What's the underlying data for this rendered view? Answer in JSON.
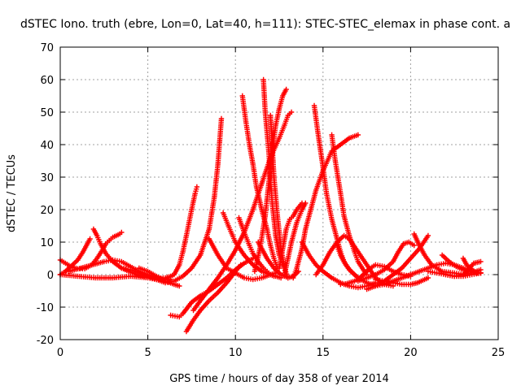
{
  "chart_data": {
    "type": "scatter",
    "title": "dSTEC Iono. truth (ebre, Lon=0, Lat=40, h=111): STEC-STEC_elemax in phase cont. a",
    "xlabel": "GPS time / hours of day 358 of year 2014",
    "ylabel": "dSTEC  / TECUs",
    "xlim": [
      0,
      25
    ],
    "ylim": [
      -20,
      70
    ],
    "xticks": [
      0,
      5,
      10,
      15,
      20,
      25
    ],
    "yticks": [
      -20,
      -10,
      0,
      10,
      20,
      30,
      40,
      50,
      60,
      70
    ],
    "grid": true,
    "marker": "+",
    "color": "#ff0000",
    "series": [
      {
        "x": [
          0.0,
          0.3,
          0.6,
          1.0,
          1.3,
          1.6,
          1.7
        ],
        "y": [
          0.0,
          1.0,
          2.5,
          4.5,
          7.0,
          10.0,
          11.0
        ]
      },
      {
        "x": [
          0.0,
          0.3,
          0.6,
          1.0,
          1.4,
          1.8,
          2.1,
          2.4,
          2.6,
          2.8,
          3.0,
          3.2,
          3.4,
          3.5
        ],
        "y": [
          4.5,
          3.5,
          2.5,
          1.8,
          1.8,
          3.0,
          5.0,
          7.5,
          9.5,
          10.5,
          11.5,
          12.0,
          12.5,
          13.0
        ]
      },
      {
        "x": [
          1.9,
          2.1,
          2.3,
          2.6,
          3.0,
          3.5,
          4.0,
          4.5,
          5.0,
          5.5,
          6.0,
          6.3
        ],
        "y": [
          14.0,
          12.0,
          9.5,
          6.5,
          4.0,
          2.0,
          0.8,
          -0.2,
          -0.8,
          -1.2,
          -1.0,
          -0.5
        ]
      },
      {
        "x": [
          0.0,
          1.0,
          2.0,
          3.0,
          4.0,
          5.0,
          5.5,
          6.0,
          6.5,
          6.8,
          7.0,
          7.2,
          7.5,
          7.7,
          7.8
        ],
        "y": [
          0.0,
          -0.5,
          -1.0,
          -1.0,
          -0.5,
          -1.0,
          -1.5,
          -1.5,
          0.0,
          3.0,
          7.0,
          12.0,
          20.0,
          25.0,
          27.0
        ]
      },
      {
        "x": [
          0.5,
          1.5,
          2.5,
          3.0,
          3.5,
          4.0,
          4.5,
          5.0,
          5.5,
          6.0,
          6.3
        ],
        "y": [
          1.0,
          2.5,
          4.0,
          4.5,
          4.0,
          2.5,
          1.0,
          0.0,
          -1.0,
          -1.5,
          -1.5
        ]
      },
      {
        "x": [
          3.5,
          4.0,
          4.5,
          5.0,
          5.5,
          6.0,
          6.5,
          7.0,
          7.5,
          8.0,
          8.5,
          8.8,
          9.0,
          9.2
        ],
        "y": [
          2.0,
          1.5,
          0.5,
          -0.5,
          -1.5,
          -2.5,
          -2.0,
          -0.5,
          2.0,
          6.0,
          14.0,
          24.0,
          34.0,
          48.0
        ]
      },
      {
        "x": [
          4.5,
          5.0,
          5.5,
          6.0,
          6.5,
          6.8
        ],
        "y": [
          2.0,
          1.0,
          -0.5,
          -2.0,
          -3.0,
          -3.5
        ]
      },
      {
        "x": [
          6.3,
          6.8,
          7.0,
          7.5,
          8.0,
          8.5,
          9.0,
          9.5,
          10.0,
          10.5,
          11.0
        ],
        "y": [
          -12.5,
          -13.0,
          -12.0,
          -8.5,
          -6.5,
          -5.0,
          -3.0,
          -1.0,
          1.5,
          3.5,
          5.0
        ]
      },
      {
        "x": [
          7.2,
          7.6,
          8.0,
          8.5,
          9.0,
          9.5,
          10.0,
          10.3
        ],
        "y": [
          -17.5,
          -14.0,
          -11.0,
          -8.0,
          -5.5,
          -2.5,
          1.0,
          3.0
        ]
      },
      {
        "x": [
          7.6,
          8.0,
          8.5,
          9.0,
          9.5,
          10.0,
          10.5,
          11.0,
          11.5,
          12.0,
          12.5,
          12.8,
          13.0,
          13.2
        ],
        "y": [
          -11.0,
          -8.0,
          -4.5,
          -1.0,
          3.0,
          7.5,
          13.0,
          20.0,
          28.0,
          36.0,
          42.0,
          46.0,
          49.0,
          50.0
        ]
      },
      {
        "x": [
          9.3,
          9.6,
          10.0,
          10.5,
          11.0,
          11.5,
          12.0,
          12.3,
          12.6
        ],
        "y": [
          19.0,
          15.0,
          10.0,
          6.0,
          3.0,
          1.0,
          0.0,
          -0.5,
          -1.0
        ]
      },
      {
        "x": [
          8.5,
          9.0,
          9.5,
          10.0,
          10.5,
          11.0,
          11.5,
          12.0,
          12.3
        ],
        "y": [
          11.0,
          6.0,
          2.0,
          0.5,
          -1.0,
          -1.5,
          -1.0,
          0.0,
          0.5
        ]
      },
      {
        "x": [
          10.4,
          10.6,
          10.8,
          11.0,
          11.2,
          11.5,
          11.8,
          12.0,
          12.2,
          12.4
        ],
        "y": [
          55.0,
          47.0,
          40.0,
          34.0,
          27.0,
          20.0,
          14.0,
          9.0,
          5.0,
          2.0
        ]
      },
      {
        "x": [
          10.2,
          10.5,
          10.8,
          11.0,
          11.3,
          11.6,
          11.8,
          12.0,
          12.2
        ],
        "y": [
          17.5,
          13.0,
          9.0,
          6.5,
          4.0,
          2.0,
          1.0,
          0.0,
          -0.5
        ]
      },
      {
        "x": [
          11.1,
          11.4,
          11.7,
          11.9,
          12.1,
          12.3,
          12.5,
          12.7,
          12.9
        ],
        "y": [
          1.0,
          8.0,
          18.0,
          28.0,
          38.0,
          46.0,
          51.0,
          55.0,
          57.0
        ]
      },
      {
        "x": [
          11.6,
          11.7,
          11.9,
          12.0,
          12.1,
          12.3,
          12.5,
          12.7
        ],
        "y": [
          60.0,
          50.0,
          38.0,
          30.0,
          22.0,
          12.0,
          6.0,
          3.0
        ]
      },
      {
        "x": [
          12.5,
          12.7,
          12.9,
          13.1,
          13.3,
          13.5,
          13.8
        ],
        "y": [
          2.0,
          8.0,
          14.0,
          17.0,
          18.0,
          20.0,
          22.0
        ]
      },
      {
        "x": [
          12.0,
          12.1,
          12.2,
          12.4,
          12.6,
          12.8,
          13.0
        ],
        "y": [
          49.0,
          40.0,
          30.0,
          18.0,
          8.0,
          2.0,
          -1.0
        ]
      },
      {
        "x": [
          11.3,
          11.8,
          12.2,
          12.6,
          13.0,
          13.3,
          13.6
        ],
        "y": [
          10.0,
          5.0,
          2.0,
          0.0,
          -1.0,
          -0.5,
          1.0
        ]
      },
      {
        "x": [
          12.8,
          13.0,
          13.2,
          13.5,
          13.8,
          14.0
        ],
        "y": [
          0.0,
          5.0,
          10.0,
          16.0,
          20.0,
          22.0
        ]
      },
      {
        "x": [
          13.3,
          13.5,
          13.8,
          14.0,
          14.3,
          14.6,
          15.0,
          15.5,
          16.0,
          16.5,
          17.0
        ],
        "y": [
          -1.0,
          2.0,
          8.0,
          14.0,
          20.0,
          26.0,
          32.0,
          38.0,
          40.0,
          42.0,
          43.0
        ]
      },
      {
        "x": [
          14.5,
          14.7,
          15.0,
          15.2,
          15.5,
          15.8,
          16.0,
          16.2,
          16.5,
          17.0
        ],
        "y": [
          52.0,
          44.0,
          33.0,
          25.0,
          17.0,
          11.0,
          7.0,
          4.0,
          1.5,
          -1.0
        ]
      },
      {
        "x": [
          14.6,
          15.0,
          15.4,
          15.8,
          16.2,
          16.5,
          17.0,
          17.5,
          18.0,
          18.5,
          19.0
        ],
        "y": [
          0.0,
          3.0,
          7.0,
          10.0,
          12.0,
          11.0,
          7.0,
          3.0,
          -1.0,
          -3.0,
          -3.5
        ]
      },
      {
        "x": [
          13.8,
          14.2,
          14.6,
          15.0,
          15.5,
          16.0,
          16.5,
          17.0,
          17.5,
          18.0
        ],
        "y": [
          10.0,
          6.0,
          3.0,
          1.0,
          -1.0,
          -2.5,
          -3.5,
          -4.0,
          -3.5,
          -2.5
        ]
      },
      {
        "x": [
          15.5,
          15.7,
          16.0,
          16.2,
          16.5,
          16.8,
          17.0,
          17.3,
          17.5
        ],
        "y": [
          43.0,
          35.0,
          25.0,
          18.0,
          12.0,
          7.0,
          4.0,
          1.5,
          0.0
        ]
      },
      {
        "x": [
          15.8,
          16.0,
          16.3,
          16.6,
          17.0,
          17.5,
          18.0,
          18.5,
          19.0,
          19.5,
          20.0
        ],
        "y": [
          9.0,
          6.0,
          3.0,
          1.0,
          -1.0,
          -2.5,
          -3.5,
          -3.0,
          -2.0,
          -1.0,
          0.0
        ]
      },
      {
        "x": [
          16.0,
          16.2,
          16.5,
          16.8,
          17.1,
          17.4,
          17.7,
          18.0,
          18.5,
          19.0,
          19.5,
          20.0
        ],
        "y": [
          -3.0,
          -3.0,
          -2.5,
          -2.0,
          -1.0,
          0.5,
          2.0,
          3.0,
          2.5,
          1.0,
          0.0,
          -0.5
        ]
      },
      {
        "x": [
          17.0,
          17.5,
          18.0,
          18.5,
          19.0,
          19.3,
          19.6,
          19.9,
          20.2
        ],
        "y": [
          -2.0,
          -1.0,
          0.0,
          1.5,
          4.0,
          7.0,
          9.5,
          10.0,
          9.0
        ]
      },
      {
        "x": [
          18.0,
          18.5,
          19.0,
          19.5,
          20.0,
          20.4,
          20.8,
          21.0
        ],
        "y": [
          -1.5,
          -2.0,
          -2.5,
          -3.0,
          -3.0,
          -2.5,
          -1.5,
          -1.0
        ]
      },
      {
        "x": [
          17.5,
          18.0,
          18.5,
          19.0,
          19.5,
          20.0,
          20.5,
          21.0
        ],
        "y": [
          -4.5,
          -3.5,
          -2.0,
          0.0,
          2.0,
          5.0,
          8.0,
          12.0
        ]
      },
      {
        "x": [
          20.2,
          20.5,
          20.8,
          21.2,
          21.8,
          22.5,
          23.0,
          23.5,
          24.0
        ],
        "y": [
          12.5,
          9.0,
          6.0,
          3.0,
          1.0,
          0.5,
          0.0,
          0.5,
          1.5
        ]
      },
      {
        "x": [
          21.8,
          22.2,
          22.6,
          23.0,
          23.4,
          23.8,
          24.0
        ],
        "y": [
          6.0,
          4.0,
          2.5,
          1.5,
          1.0,
          0.5,
          0.5
        ]
      },
      {
        "x": [
          20.0,
          20.5,
          21.0,
          21.5,
          22.0,
          22.5,
          23.0,
          23.5,
          24.0
        ],
        "y": [
          0.0,
          1.0,
          2.0,
          3.0,
          3.5,
          3.0,
          2.0,
          1.0,
          0.5
        ]
      },
      {
        "x": [
          22.0,
          22.5,
          23.0,
          23.3,
          23.6,
          24.0
        ],
        "y": [
          0.0,
          -0.5,
          0.0,
          1.5,
          3.5,
          4.0
        ]
      },
      {
        "x": [
          23.0,
          23.2,
          23.5,
          23.8,
          24.0
        ],
        "y": [
          5.0,
          3.0,
          1.5,
          0.5,
          0.5
        ]
      },
      {
        "x": [
          21.0,
          21.5,
          22.0,
          22.5,
          23.0,
          23.5,
          24.0
        ],
        "y": [
          1.0,
          0.5,
          0.0,
          -0.5,
          -0.5,
          0.0,
          0.5
        ]
      }
    ]
  }
}
